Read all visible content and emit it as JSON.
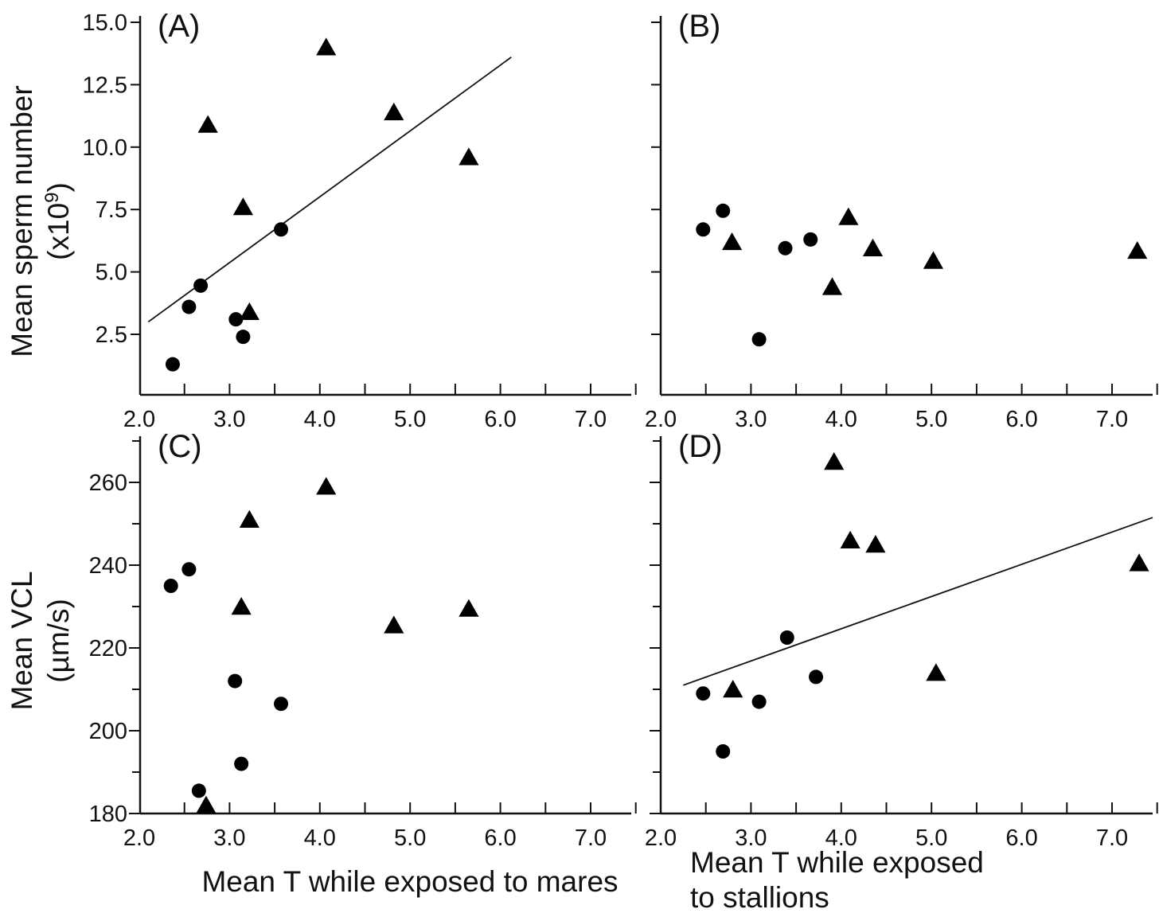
{
  "chart_data": [
    {
      "panel": "(A)",
      "type": "scatter",
      "xlabel": "Mean T while exposed to mares",
      "ylabel": "Mean sperm number",
      "ylabel2": "(x10",
      "ylabel_sup": "9",
      "ylabel2_close": ")",
      "xlim": [
        2.0,
        7.5
      ],
      "ylim": [
        0.0,
        15.0
      ],
      "xticks": [
        "2.0",
        "3.0",
        "4.0",
        "5.0",
        "6.0",
        "7.0"
      ],
      "yticks": [
        "2.5",
        "5.0",
        "7.5",
        "10.0",
        "12.5",
        "15.0"
      ],
      "circles": [
        {
          "x": 2.37,
          "y": 1.3
        },
        {
          "x": 2.55,
          "y": 3.6
        },
        {
          "x": 2.68,
          "y": 4.45
        },
        {
          "x": 3.07,
          "y": 3.1
        },
        {
          "x": 3.15,
          "y": 2.4
        },
        {
          "x": 3.57,
          "y": 6.7
        }
      ],
      "triangles": [
        {
          "x": 2.76,
          "y": 10.9
        },
        {
          "x": 3.15,
          "y": 7.6
        },
        {
          "x": 3.22,
          "y": 3.4
        },
        {
          "x": 4.07,
          "y": 14.0
        },
        {
          "x": 4.82,
          "y": 11.4
        },
        {
          "x": 5.65,
          "y": 9.6
        }
      ],
      "fit_line": {
        "x": [
          2.1,
          6.12
        ],
        "y": [
          3.0,
          13.6
        ]
      }
    },
    {
      "panel": "(B)",
      "type": "scatter",
      "xlabel": "Mean T while exposed to stallions",
      "xlim": [
        2.0,
        7.5
      ],
      "ylim": [
        0.0,
        15.0
      ],
      "xticks": [
        "2.0",
        "3.0",
        "4.0",
        "5.0",
        "6.0",
        "7.0"
      ],
      "yticks": [
        "2.5",
        "5.0",
        "7.5",
        "10.0",
        "12.5",
        "15.0"
      ],
      "circles": [
        {
          "x": 2.47,
          "y": 6.7
        },
        {
          "x": 2.69,
          "y": 7.45
        },
        {
          "x": 3.09,
          "y": 2.3
        },
        {
          "x": 3.38,
          "y": 5.95
        },
        {
          "x": 3.66,
          "y": 6.3
        }
      ],
      "triangles": [
        {
          "x": 2.79,
          "y": 6.2
        },
        {
          "x": 3.9,
          "y": 4.4
        },
        {
          "x": 4.08,
          "y": 7.2
        },
        {
          "x": 4.35,
          "y": 5.95
        },
        {
          "x": 5.02,
          "y": 5.45
        },
        {
          "x": 7.28,
          "y": 5.85
        }
      ]
    },
    {
      "panel": "(C)",
      "type": "scatter",
      "ylabel": "Mean VCL",
      "ylabel2": "(µm/s)",
      "xlim": [
        2.0,
        7.5
      ],
      "ylim": [
        180,
        272
      ],
      "xticks": [
        "2.0",
        "3.0",
        "4.0",
        "5.0",
        "6.0",
        "7.0"
      ],
      "yticks": [
        "180",
        "200",
        "220",
        "240",
        "260"
      ],
      "circles": [
        {
          "x": 2.35,
          "y": 235
        },
        {
          "x": 2.55,
          "y": 239
        },
        {
          "x": 2.66,
          "y": 185.5
        },
        {
          "x": 3.06,
          "y": 212
        },
        {
          "x": 3.13,
          "y": 192
        },
        {
          "x": 3.57,
          "y": 206.5
        }
      ],
      "triangles": [
        {
          "x": 2.74,
          "y": 182
        },
        {
          "x": 3.13,
          "y": 230
        },
        {
          "x": 3.22,
          "y": 251
        },
        {
          "x": 4.07,
          "y": 259
        },
        {
          "x": 4.82,
          "y": 225.5
        },
        {
          "x": 5.65,
          "y": 229.5
        }
      ]
    },
    {
      "panel": "(D)",
      "type": "scatter",
      "xlim": [
        2.0,
        7.5
      ],
      "ylim": [
        180,
        272
      ],
      "xticks": [
        "2.0",
        "3.0",
        "4.0",
        "5.0",
        "6.0",
        "7.0"
      ],
      "yticks": [
        "180",
        "200",
        "220",
        "240",
        "260"
      ],
      "circles": [
        {
          "x": 2.47,
          "y": 209
        },
        {
          "x": 2.69,
          "y": 195
        },
        {
          "x": 3.09,
          "y": 207
        },
        {
          "x": 3.4,
          "y": 222.5
        },
        {
          "x": 3.72,
          "y": 213
        }
      ],
      "triangles": [
        {
          "x": 2.8,
          "y": 210
        },
        {
          "x": 3.92,
          "y": 265
        },
        {
          "x": 4.1,
          "y": 246
        },
        {
          "x": 4.38,
          "y": 245
        },
        {
          "x": 5.05,
          "y": 214
        },
        {
          "x": 7.3,
          "y": 240.5
        }
      ],
      "fit_line": {
        "x": [
          2.25,
          7.45
        ],
        "y": [
          211,
          251.5
        ]
      }
    }
  ]
}
